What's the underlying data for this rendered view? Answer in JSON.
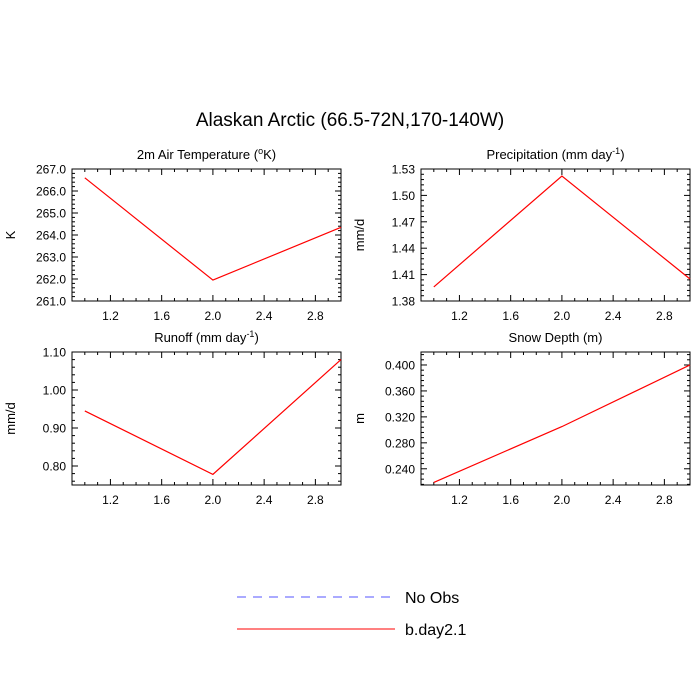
{
  "title": "Alaskan Arctic (66.5-72N,170-140W)",
  "legend": {
    "entries": [
      {
        "label": "No Obs",
        "color": "#5555ff",
        "style": "dashed"
      },
      {
        "label": "b.day2.1",
        "color": "#ff0000",
        "style": "solid"
      }
    ]
  },
  "chart_data": [
    {
      "type": "line",
      "title": "2m Air Temperature (",
      "title_sup": "o",
      "title_end": "K)",
      "ylabel": "K",
      "xlabel": "",
      "x": [
        1,
        2,
        3
      ],
      "series": [
        {
          "name": "b.day2.1",
          "values": [
            266.6,
            261.95,
            264.35
          ]
        }
      ],
      "xlim": [
        0.9,
        3.0
      ],
      "ylim": [
        261.0,
        267.0
      ],
      "xticks": [
        1.2,
        1.6,
        2.0,
        2.4,
        2.8
      ],
      "xtick_labels": [
        "1.2",
        "1.6",
        "2.0",
        "2.4",
        "2.8"
      ],
      "yticks": [
        261.0,
        262.0,
        263.0,
        264.0,
        265.0,
        266.0,
        267.0
      ],
      "ytick_labels": [
        "261.0",
        "262.0",
        "263.0",
        "264.0",
        "265.0",
        "266.0",
        "267.0"
      ],
      "color": "#ff0000"
    },
    {
      "type": "line",
      "title": "Precipitation (mm day",
      "title_sup": "-1",
      "title_end": ")",
      "ylabel": "mm/d",
      "xlabel": "",
      "x": [
        1,
        2,
        3
      ],
      "series": [
        {
          "name": "b.day2.1",
          "values": [
            1.396,
            1.522,
            1.405
          ]
        }
      ],
      "xlim": [
        0.9,
        3.0
      ],
      "ylim": [
        1.38,
        1.53
      ],
      "xticks": [
        1.2,
        1.6,
        2.0,
        2.4,
        2.8
      ],
      "xtick_labels": [
        "1.2",
        "1.6",
        "2.0",
        "2.4",
        "2.8"
      ],
      "yticks": [
        1.38,
        1.41,
        1.44,
        1.47,
        1.5,
        1.53
      ],
      "ytick_labels": [
        "1.38",
        "1.41",
        "1.44",
        "1.47",
        "1.50",
        "1.53"
      ],
      "color": "#ff0000"
    },
    {
      "type": "line",
      "title": "Runoff (mm day",
      "title_sup": "-1",
      "title_end": ")",
      "ylabel": "mm/d",
      "xlabel": "",
      "x": [
        1,
        2,
        3
      ],
      "series": [
        {
          "name": "b.day2.1",
          "values": [
            0.945,
            0.778,
            1.08
          ]
        }
      ],
      "xlim": [
        0.9,
        3.0
      ],
      "ylim": [
        0.75,
        1.1
      ],
      "xticks": [
        1.2,
        1.6,
        2.0,
        2.4,
        2.8
      ],
      "xtick_labels": [
        "1.2",
        "1.6",
        "2.0",
        "2.4",
        "2.8"
      ],
      "yticks": [
        0.8,
        0.9,
        1.0,
        1.1
      ],
      "ytick_labels": [
        "0.80",
        "0.90",
        "1.00",
        "1.10"
      ],
      "color": "#ff0000"
    },
    {
      "type": "line",
      "title": "Snow Depth (m)",
      "title_sup": "",
      "title_end": "",
      "ylabel": "m",
      "xlabel": "",
      "x": [
        1,
        2,
        3
      ],
      "series": [
        {
          "name": "b.day2.1",
          "values": [
            0.219,
            0.305,
            0.4
          ]
        }
      ],
      "xlim": [
        0.9,
        3.0
      ],
      "ylim": [
        0.215,
        0.42
      ],
      "xticks": [
        1.2,
        1.6,
        2.0,
        2.4,
        2.8
      ],
      "xtick_labels": [
        "1.2",
        "1.6",
        "2.0",
        "2.4",
        "2.8"
      ],
      "yticks": [
        0.24,
        0.28,
        0.32,
        0.36,
        0.4
      ],
      "ytick_labels": [
        "0.240",
        "0.280",
        "0.320",
        "0.360",
        "0.400"
      ],
      "color": "#ff0000"
    }
  ]
}
